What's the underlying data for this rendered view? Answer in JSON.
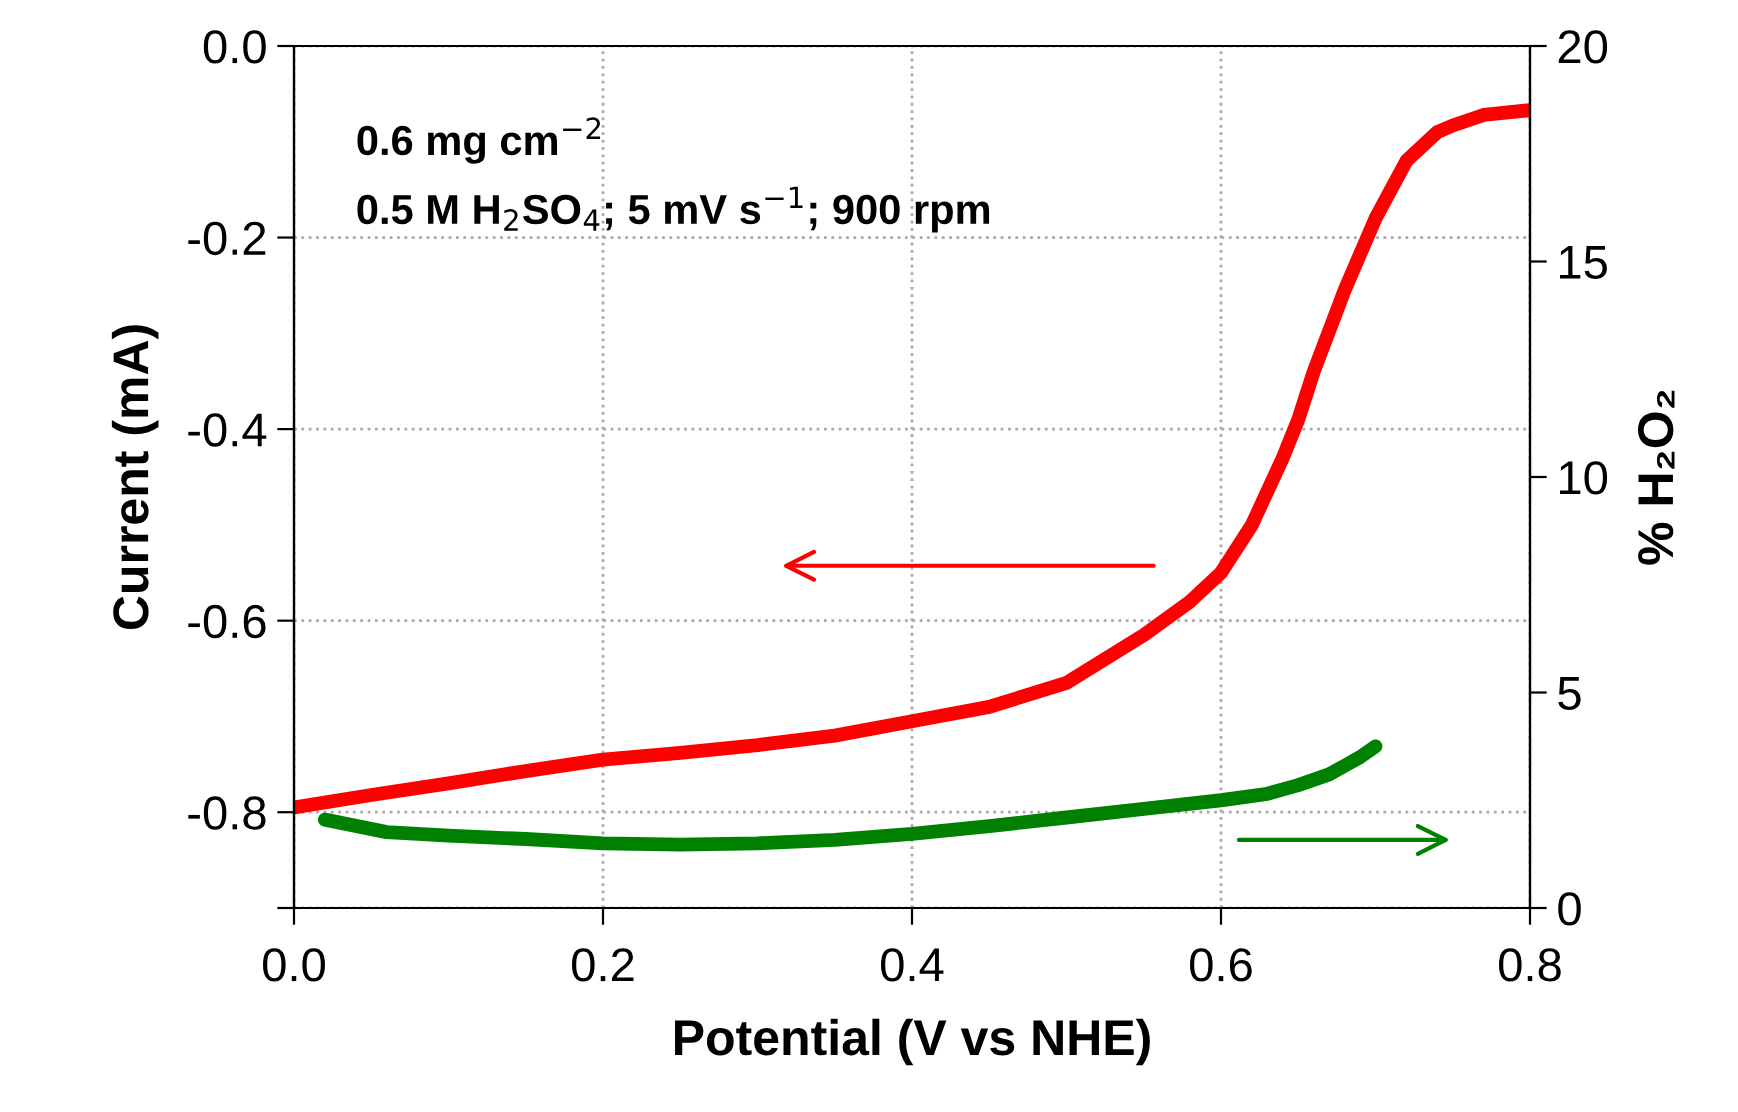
{
  "chart_data": {
    "type": "line",
    "xlabel": "Potential (V vs NHE)",
    "ylabel": "Current (mA)",
    "y2label": "% H₂O₂",
    "annotations": [
      "0.6 mg cm$^{−2}$",
      "0.5 M H$_{2}$SO$_{4}$; 5 mV s$^{−1}$; 900 rpm"
    ],
    "series": [
      {
        "color": "#ff0000",
        "x": [
          0,
          0.05,
          0.1,
          0.15,
          0.2,
          0.25,
          0.3,
          0.35,
          0.4,
          0.45,
          0.5,
          0.55,
          0.58,
          0.6,
          0.62,
          0.64,
          0.65,
          0.66,
          0.68,
          0.7,
          0.72,
          0.74,
          0.75,
          0.77,
          0.8
        ],
        "values": [
          -0.795,
          -0.782,
          -0.77,
          -0.757,
          -0.745,
          -0.738,
          -0.73,
          -0.72,
          -0.705,
          -0.69,
          -0.665,
          -0.615,
          -0.58,
          -0.55,
          -0.5,
          -0.43,
          -0.39,
          -0.34,
          -0.255,
          -0.18,
          -0.12,
          -0.09,
          -0.083,
          -0.072,
          -0.067
        ]
      },
      {
        "color": "#008000",
        "axis": "y2",
        "x": [
          0.02,
          0.06,
          0.1,
          0.15,
          0.2,
          0.25,
          0.3,
          0.35,
          0.4,
          0.45,
          0.5,
          0.55,
          0.6,
          0.63,
          0.65,
          0.67,
          0.68,
          0.69,
          0.7
        ],
        "values": [
          2.05,
          1.76,
          1.68,
          1.6,
          1.5,
          1.47,
          1.5,
          1.58,
          1.72,
          1.9,
          2.1,
          2.3,
          2.5,
          2.65,
          2.85,
          3.1,
          3.3,
          3.5,
          3.75
        ]
      }
    ],
    "xlim": [
      0,
      0.8
    ],
    "xticks": [
      {
        "value": 0,
        "label": "0.0"
      },
      0.2,
      0.4,
      0.6,
      0.8
    ],
    "ylim": [
      -0.9,
      0
    ],
    "yticks": [
      {
        "value": -0.9,
        "label": null
      },
      -0.8,
      -0.6,
      -0.4,
      -0.2,
      {
        "value": 0,
        "label": "0.0"
      }
    ],
    "y2lim": [
      0,
      20
    ],
    "y2ticks": [
      0,
      5,
      10,
      15,
      20
    ],
    "grid": true,
    "marker": "none",
    "line_style": "solid"
  }
}
